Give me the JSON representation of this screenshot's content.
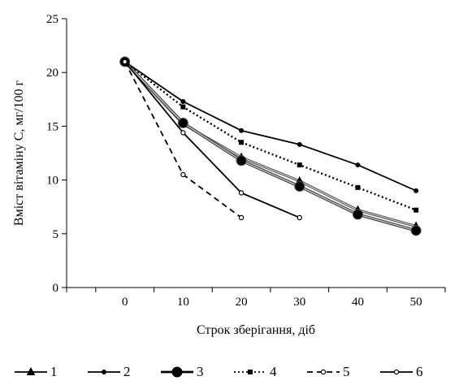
{
  "chart_data": {
    "type": "line",
    "title": "",
    "xlabel": "Строк зберігання, діб",
    "ylabel": "Вміст вітаміну С, мг/100 г",
    "xlim": [
      -10,
      55
    ],
    "ylim": [
      0,
      25
    ],
    "xticks": [
      0,
      10,
      20,
      30,
      40,
      50
    ],
    "yticks": [
      0,
      5,
      10,
      15,
      20,
      25
    ],
    "grid": false,
    "legend_position": "bottom",
    "series": [
      {
        "name": "1",
        "marker": "triangle",
        "dash": "solid",
        "color": "#000000",
        "x": [
          0,
          10,
          20,
          30,
          40,
          50
        ],
        "y": [
          21.0,
          15.2,
          12.1,
          9.9,
          7.2,
          5.7
        ]
      },
      {
        "name": "2",
        "marker": "small-dot",
        "dash": "solid",
        "color": "#000000",
        "x": [
          0,
          10,
          20,
          30,
          40,
          50
        ],
        "y": [
          21.0,
          17.3,
          14.6,
          13.3,
          11.4,
          9.0
        ]
      },
      {
        "name": "3",
        "marker": "big-dot",
        "dash": "solid",
        "color": "#555555",
        "x": [
          0,
          10,
          20,
          30,
          40,
          50
        ],
        "y": [
          21.0,
          15.3,
          11.8,
          9.4,
          6.8,
          5.3
        ]
      },
      {
        "name": "4",
        "marker": "square",
        "dash": "dotted",
        "color": "#000000",
        "x": [
          0,
          10,
          20,
          30,
          40,
          50
        ],
        "y": [
          21.0,
          16.8,
          13.5,
          11.4,
          9.3,
          7.2
        ]
      },
      {
        "name": "5",
        "marker": "open-circle",
        "dash": "dashed",
        "color": "#000000",
        "x": [
          0,
          10,
          20
        ],
        "y": [
          21.0,
          10.5,
          6.5
        ]
      },
      {
        "name": "6",
        "marker": "open-circle",
        "dash": "solid",
        "color": "#000000",
        "x": [
          0,
          10,
          20,
          30
        ],
        "y": [
          21.0,
          14.4,
          8.8,
          6.5
        ]
      }
    ]
  }
}
